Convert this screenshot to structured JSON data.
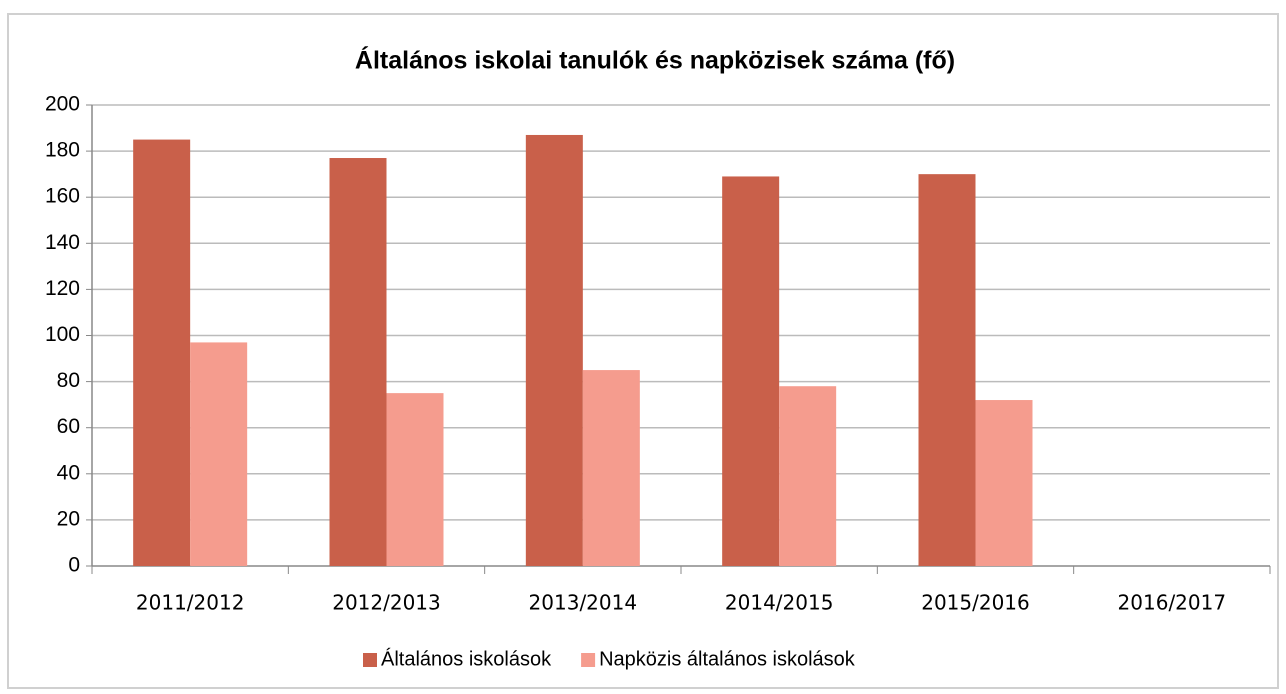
{
  "chart_data": {
    "type": "bar",
    "title": "Általános iskolai tanulók és napközisek száma (fő)",
    "categories": [
      "2011/2012",
      "2012/2013",
      "2013/2014",
      "2014/2015",
      "2015/2016",
      "2016/2017"
    ],
    "series": [
      {
        "name": "Általános iskolások",
        "color": "#c9604a",
        "values": [
          185,
          177,
          187,
          169,
          170,
          null
        ]
      },
      {
        "name": "Napközis általános iskolások",
        "color": "#f59c8e",
        "values": [
          97,
          75,
          85,
          78,
          72,
          null
        ]
      }
    ],
    "ylim": [
      0,
      200
    ],
    "yticks": [
      0,
      20,
      40,
      60,
      80,
      100,
      120,
      140,
      160,
      180,
      200
    ],
    "grid": true,
    "legend": "bottom"
  }
}
